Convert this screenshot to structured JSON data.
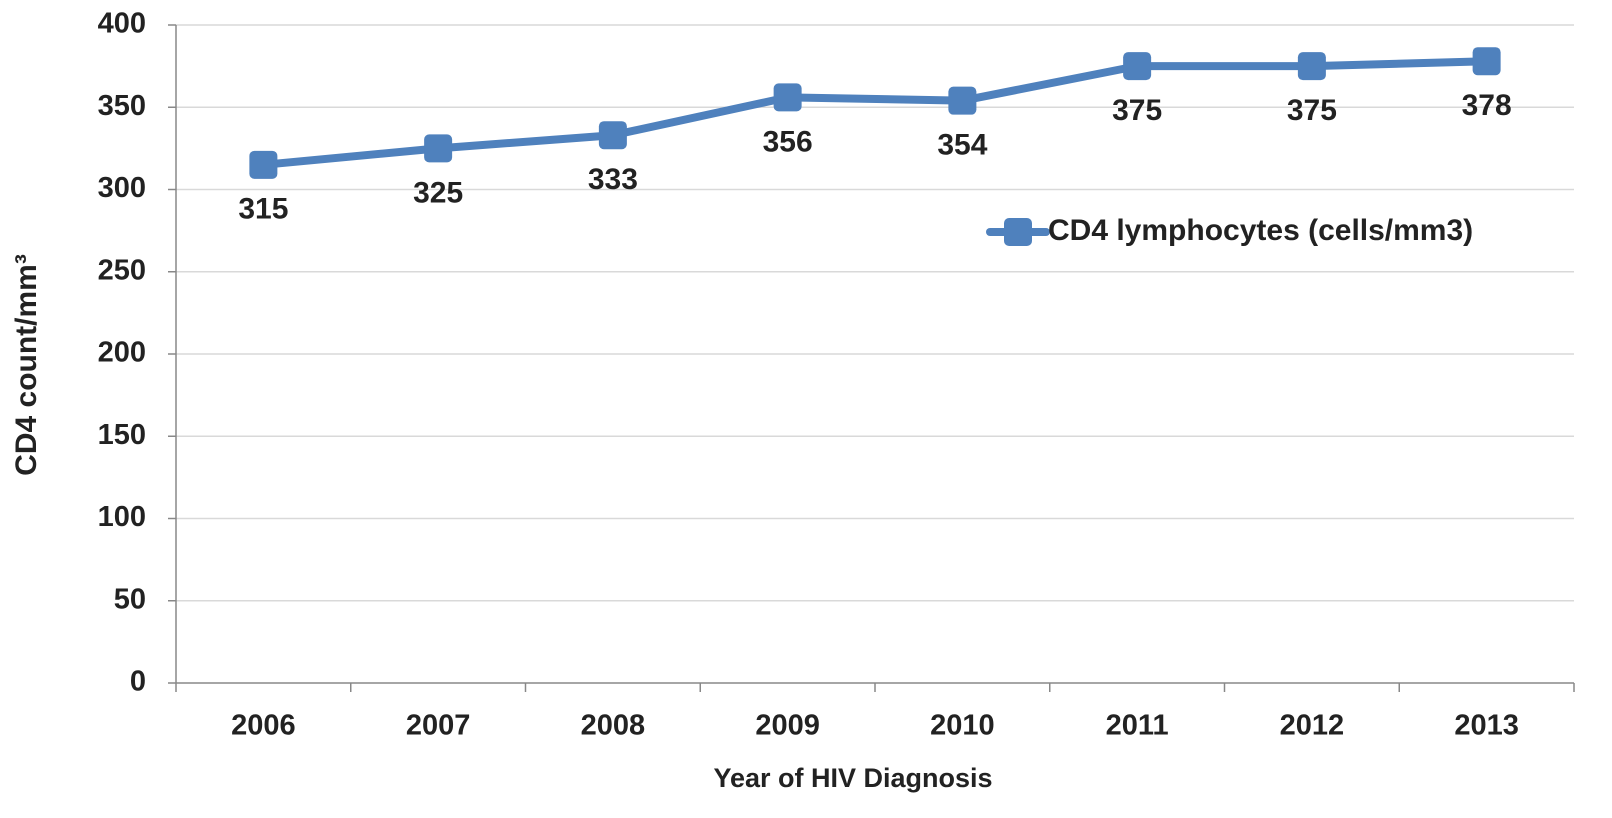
{
  "chart_data": {
    "type": "line",
    "x_label": "Year of HIV Diagnosis",
    "y_label": "CD4 count/mm³",
    "categories": [
      "2006",
      "2007",
      "2008",
      "2009",
      "2010",
      "2011",
      "2012",
      "2013"
    ],
    "series": [
      {
        "name": "CD4 lymphocytes (cells/mm3)",
        "color": "#4f81bd",
        "values": [
          315,
          325,
          333,
          356,
          354,
          375,
          375,
          378
        ]
      }
    ],
    "ylim": [
      0,
      400
    ],
    "yticks": [
      0,
      50,
      100,
      150,
      200,
      250,
      300,
      350,
      400
    ],
    "grid": true,
    "legend": "upper right"
  }
}
